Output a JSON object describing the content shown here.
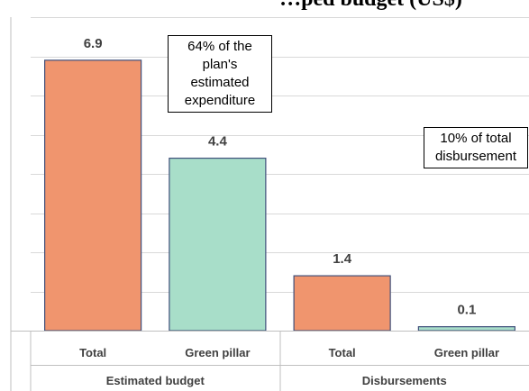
{
  "chart_data": {
    "type": "bar",
    "title": "…ped budget (US$)",
    "ylim": [
      0,
      8
    ],
    "grid": true,
    "categories": [
      "Total",
      "Green pillar",
      "Total",
      "Green pillar"
    ],
    "groups": [
      {
        "label": "Estimated budget",
        "categories": [
          "Total",
          "Green pillar"
        ]
      },
      {
        "label": "Disbursements",
        "categories": [
          "Total",
          "Green pillar"
        ]
      }
    ],
    "values": [
      6.9,
      4.4,
      1.4,
      0.1
    ],
    "data_labels": [
      "6.9",
      "4.4",
      "1.4",
      "0.1"
    ],
    "bar_colors": [
      "#F0956E",
      "#A8DEC9",
      "#F0956E",
      "#A8DEC9"
    ],
    "annotations": [
      {
        "lines": [
          "64% of the",
          "plan's",
          "estimated",
          "expenditure"
        ],
        "refers_to": "Estimated budget"
      },
      {
        "lines": [
          "10% of total",
          "disbursement"
        ],
        "refers_to": "Disbursements"
      }
    ]
  },
  "colors": {
    "total": "#F0956E",
    "green_pillar": "#A8DEC9",
    "bar_stroke": "#3F4F7A",
    "grid": "#D9D9D9"
  }
}
